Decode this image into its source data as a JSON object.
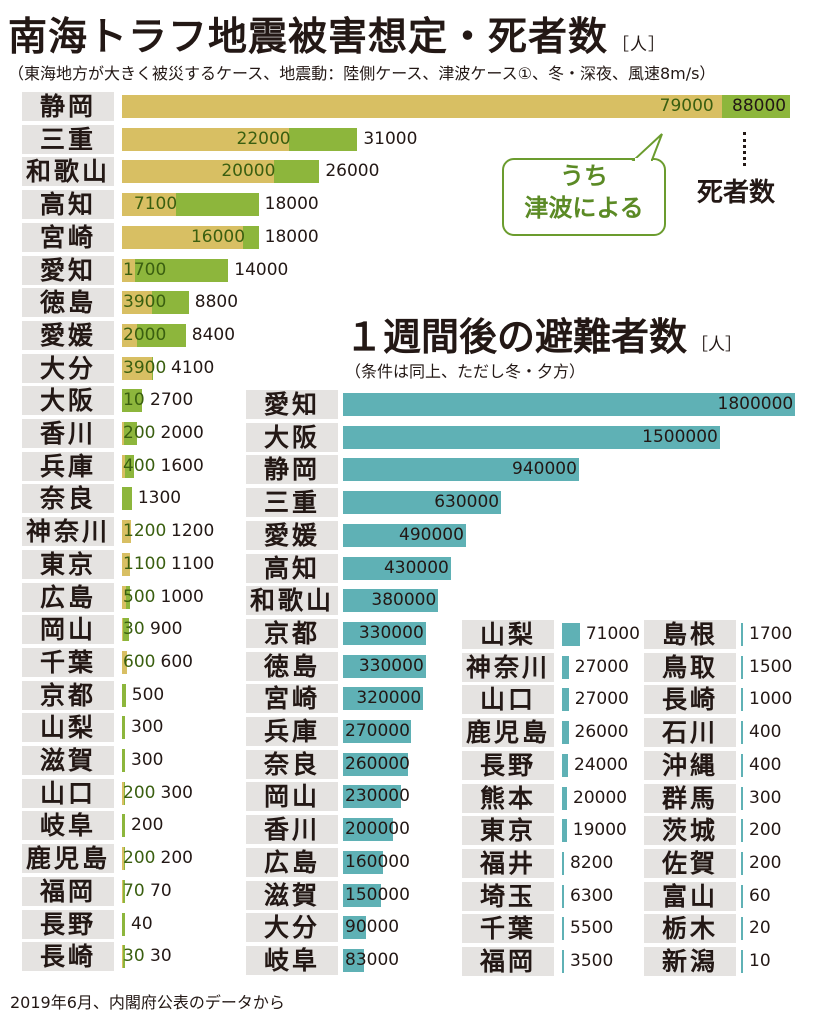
{
  "deaths": {
    "title": "南海トラフ地震被害想定・死者数",
    "unit": "［人］",
    "subtitle": "（東海地方が大きく被災するケース、地震動：陸側ケース、津波ケース①、冬・深夜、風速8m/s）",
    "callout_line1": "うち",
    "callout_line2": "津波による",
    "deaths_label": "死者数"
  },
  "evac": {
    "title": "１週間後の避難者数",
    "unit": "［人］",
    "subtitle": "（条件は同上、ただし冬・夕方）"
  },
  "source": "2019年6月、内閣府公表のデータから",
  "colors": {
    "total": "#d8bf63",
    "tsunami": "#8db63c",
    "evac": "#5fb1b5",
    "label_bg": "#e5e3e1"
  },
  "chart_data": [
    {
      "type": "bar",
      "title": "南海トラフ地震被害想定・死者数",
      "unit": "人",
      "orientation": "horizontal",
      "series": [
        {
          "name": "死者数",
          "values": [
            88000,
            31000,
            26000,
            18000,
            18000,
            14000,
            8800,
            8400,
            4100,
            2700,
            2000,
            1600,
            1300,
            1200,
            1100,
            1000,
            900,
            600,
            500,
            300,
            300,
            300,
            200,
            200,
            70,
            40,
            30
          ]
        },
        {
          "name": "うち津波による",
          "values": [
            79000,
            22000,
            20000,
            7100,
            16000,
            1700,
            3900,
            2000,
            3900,
            10,
            200,
            400,
            null,
            1200,
            1100,
            500,
            30,
            600,
            null,
            null,
            null,
            200,
            null,
            200,
            70,
            null,
            30
          ]
        }
      ],
      "categories": [
        "静岡",
        "三重",
        "和歌山",
        "高知",
        "宮崎",
        "愛知",
        "徳島",
        "愛媛",
        "大分",
        "大阪",
        "香川",
        "兵庫",
        "奈良",
        "神奈川",
        "東京",
        "広島",
        "岡山",
        "千葉",
        "京都",
        "山梨",
        "滋賀",
        "山口",
        "岐阜",
        "鹿児島",
        "福岡",
        "長野",
        "長崎"
      ]
    },
    {
      "type": "bar",
      "title": "１週間後の避難者数",
      "unit": "人",
      "orientation": "horizontal",
      "categories": [
        "愛知",
        "大阪",
        "静岡",
        "三重",
        "愛媛",
        "高知",
        "和歌山",
        "京都",
        "徳島",
        "宮崎",
        "兵庫",
        "奈良",
        "岡山",
        "香川",
        "広島",
        "滋賀",
        "大分",
        "岐阜",
        "山梨",
        "神奈川",
        "山口",
        "鹿児島",
        "長野",
        "熊本",
        "東京",
        "福井",
        "埼玉",
        "千葉",
        "福岡",
        "島根",
        "鳥取",
        "長崎",
        "石川",
        "沖縄",
        "群馬",
        "茨城",
        "佐賀",
        "富山",
        "栃木",
        "新潟"
      ],
      "values": [
        1800000,
        1500000,
        940000,
        630000,
        490000,
        430000,
        380000,
        330000,
        330000,
        320000,
        270000,
        260000,
        230000,
        200000,
        160000,
        150000,
        90000,
        83000,
        71000,
        27000,
        27000,
        26000,
        24000,
        20000,
        19000,
        8200,
        6300,
        5500,
        3500,
        1700,
        1500,
        1000,
        400,
        400,
        300,
        200,
        200,
        60,
        20,
        10
      ]
    }
  ]
}
